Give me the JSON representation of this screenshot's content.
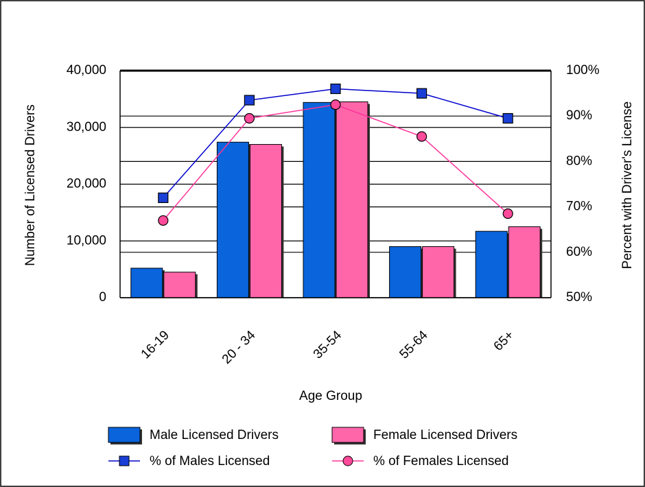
{
  "chart_data": {
    "type": "bar",
    "xlabel": "Age Group",
    "ylabel": "Number of Licensed Drivers",
    "y2label": "Percent with Driver's License",
    "categories": [
      "16-19",
      "20 - 34",
      "35-54",
      "55-64",
      "65+"
    ],
    "series": [
      {
        "name": "Male Licensed Drivers",
        "type": "bar",
        "color": "#0a64dc",
        "values": [
          5200,
          27400,
          34400,
          9000,
          11700
        ]
      },
      {
        "name": "Female Licensed Drivers",
        "type": "bar",
        "color": "#ff66aa",
        "values": [
          4500,
          27000,
          34500,
          9000,
          12500
        ]
      },
      {
        "name": "% of Males Licensed",
        "type": "line",
        "axis": "y2",
        "marker": "square",
        "color": "#0000cc",
        "marker_color": "#1a3fd6",
        "values": [
          72,
          93.5,
          96,
          95,
          89.5
        ]
      },
      {
        "name": "% of Females Licensed",
        "type": "line",
        "axis": "y2",
        "marker": "circle",
        "color": "#ff3399",
        "marker_color": "#ff4a9a",
        "values": [
          67,
          89.5,
          92.5,
          85.5,
          68.5
        ]
      }
    ],
    "ylim": [
      0,
      40000
    ],
    "yticks": [
      0,
      {
        "value": 10000,
        "label": "10,000"
      },
      {
        "value": 20000,
        "label": "20,000"
      },
      {
        "value": 30000,
        "label": "30,000"
      },
      {
        "value": 40000,
        "label": "40,000"
      }
    ],
    "y2lim": [
      50,
      100
    ],
    "y2ticks": [
      {
        "value": 50,
        "label": "50%"
      },
      {
        "value": 60,
        "label": "60%"
      },
      {
        "value": 70,
        "label": "70%"
      },
      {
        "value": 80,
        "label": "80%"
      },
      {
        "value": 90,
        "label": "90%"
      },
      {
        "value": 100,
        "label": "100%"
      }
    ],
    "grid": true
  }
}
